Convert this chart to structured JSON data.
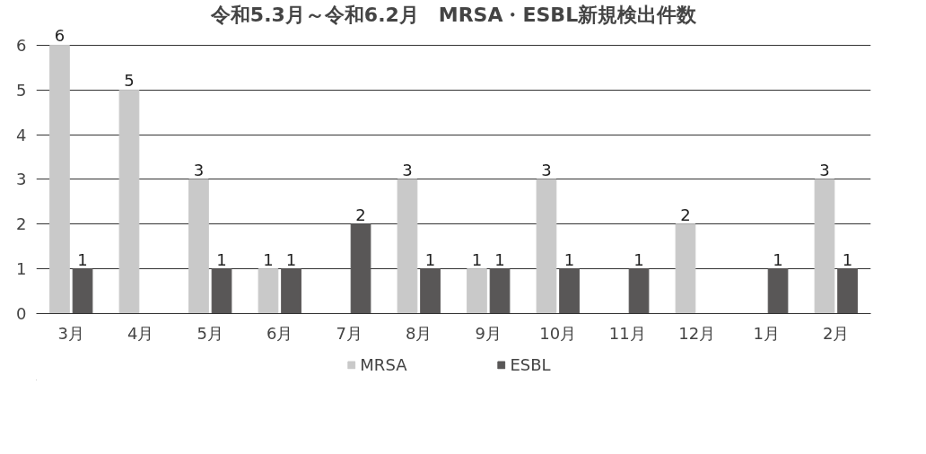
{
  "chart_data": {
    "type": "bar",
    "title": "令和5.3月～令和6.2月　MRSA・ESBL新規検出件数",
    "categories": [
      "3月",
      "4月",
      "5月",
      "6月",
      "7月",
      "8月",
      "9月",
      "10月",
      "11月",
      "12月",
      "1月",
      "2月"
    ],
    "series": [
      {
        "name": "MRSA",
        "color": "#c9c9c9",
        "values": [
          6,
          5,
          3,
          1,
          0,
          3,
          1,
          3,
          0,
          2,
          0,
          3
        ],
        "value_labels": [
          "6",
          "5",
          "3",
          "1",
          null,
          "3",
          "1",
          "3",
          null,
          "2",
          null,
          "3"
        ]
      },
      {
        "name": "ESBL",
        "color": "#595757",
        "values": [
          1,
          0,
          1,
          1,
          2,
          1,
          1,
          1,
          1,
          0,
          1,
          1
        ],
        "value_labels": [
          "1",
          null,
          "1",
          "1",
          "2",
          "1",
          "1",
          "1",
          "1",
          null,
          "1",
          "1"
        ]
      }
    ],
    "ylim": [
      0,
      6
    ],
    "yticks": [
      0,
      1,
      2,
      3,
      4,
      5,
      6
    ],
    "grid": "y",
    "legend": "bottom"
  }
}
